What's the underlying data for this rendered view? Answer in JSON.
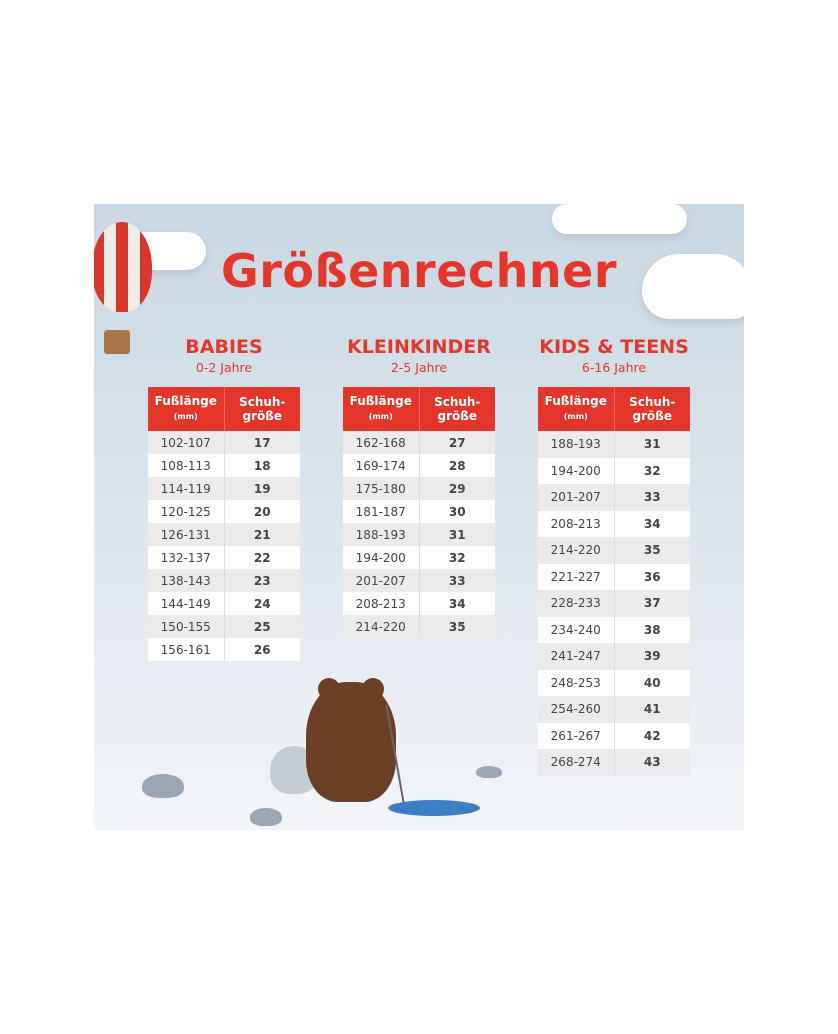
{
  "title": "Größenrechner",
  "header_labels": {
    "foot_length": "Fußlänge",
    "unit": "(mm)",
    "shoe_size_1": "Schuh-",
    "shoe_size_2": "größe"
  },
  "sections": [
    {
      "title": "BABIES",
      "age": "0-2 Jahre",
      "rows": [
        [
          "102-107",
          "17"
        ],
        [
          "108-113",
          "18"
        ],
        [
          "114-119",
          "19"
        ],
        [
          "120-125",
          "20"
        ],
        [
          "126-131",
          "21"
        ],
        [
          "132-137",
          "22"
        ],
        [
          "138-143",
          "23"
        ],
        [
          "144-149",
          "24"
        ],
        [
          "150-155",
          "25"
        ],
        [
          "156-161",
          "26"
        ]
      ]
    },
    {
      "title": "KLEINKINDER",
      "age": "2-5 Jahre",
      "rows": [
        [
          "162-168",
          "27"
        ],
        [
          "169-174",
          "28"
        ],
        [
          "175-180",
          "29"
        ],
        [
          "181-187",
          "30"
        ],
        [
          "188-193",
          "31"
        ],
        [
          "194-200",
          "32"
        ],
        [
          "201-207",
          "33"
        ],
        [
          "208-213",
          "34"
        ],
        [
          "214-220",
          "35"
        ]
      ]
    },
    {
      "title": "KIDS & TEENS",
      "age": "6-16 Jahre",
      "rows": [
        [
          "188-193",
          "31"
        ],
        [
          "194-200",
          "32"
        ],
        [
          "201-207",
          "33"
        ],
        [
          "208-213",
          "34"
        ],
        [
          "214-220",
          "35"
        ],
        [
          "221-227",
          "36"
        ],
        [
          "228-233",
          "37"
        ],
        [
          "234-240",
          "38"
        ],
        [
          "241-247",
          "39"
        ],
        [
          "248-253",
          "40"
        ],
        [
          "254-260",
          "41"
        ],
        [
          "261-267",
          "42"
        ],
        [
          "268-274",
          "43"
        ]
      ]
    }
  ],
  "colors": {
    "accent": "#e2372a",
    "background_top": "#c8d7e2",
    "row_alt": "#ebebeb"
  }
}
